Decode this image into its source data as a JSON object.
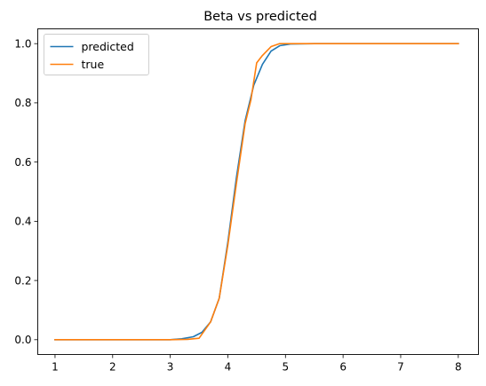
{
  "chart_data": {
    "type": "line",
    "title": "Beta vs predicted",
    "xlabel": "",
    "ylabel": "",
    "xlim": [
      0.7,
      8.35
    ],
    "ylim": [
      -0.05,
      1.05
    ],
    "xticks": [
      1,
      2,
      3,
      4,
      5,
      6,
      7,
      8
    ],
    "yticks": [
      0.0,
      0.2,
      0.4,
      0.6,
      0.8,
      1.0
    ],
    "xtick_labels": [
      "1",
      "2",
      "3",
      "4",
      "5",
      "6",
      "7",
      "8"
    ],
    "ytick_labels": [
      "0.0",
      "0.2",
      "0.4",
      "0.6",
      "0.8",
      "1.0"
    ],
    "grid": false,
    "legend": "upper-left",
    "series": [
      {
        "name": "predicted",
        "color": "#1f77b4",
        "x": [
          1.0,
          2.0,
          3.0,
          3.2,
          3.4,
          3.55,
          3.7,
          3.85,
          4.0,
          4.15,
          4.3,
          4.45,
          4.6,
          4.75,
          4.9,
          5.1,
          5.5,
          6.0,
          8.0
        ],
        "y": [
          0.0,
          0.0,
          0.0,
          0.003,
          0.01,
          0.025,
          0.06,
          0.14,
          0.33,
          0.55,
          0.74,
          0.86,
          0.93,
          0.975,
          0.993,
          0.999,
          1.0,
          1.0,
          1.0
        ]
      },
      {
        "name": "true",
        "color": "#ff7f0e",
        "x": [
          1.0,
          2.0,
          3.0,
          3.3,
          3.5,
          3.7,
          3.85,
          4.0,
          4.15,
          4.3,
          4.4,
          4.5,
          4.6,
          4.75,
          4.9,
          5.1,
          5.5,
          6.0,
          8.0
        ],
        "y": [
          0.0,
          0.0,
          0.0,
          0.001,
          0.005,
          0.06,
          0.14,
          0.32,
          0.53,
          0.73,
          0.81,
          0.935,
          0.96,
          0.99,
          1.0,
          1.0,
          1.0,
          1.0,
          1.0
        ]
      }
    ]
  }
}
